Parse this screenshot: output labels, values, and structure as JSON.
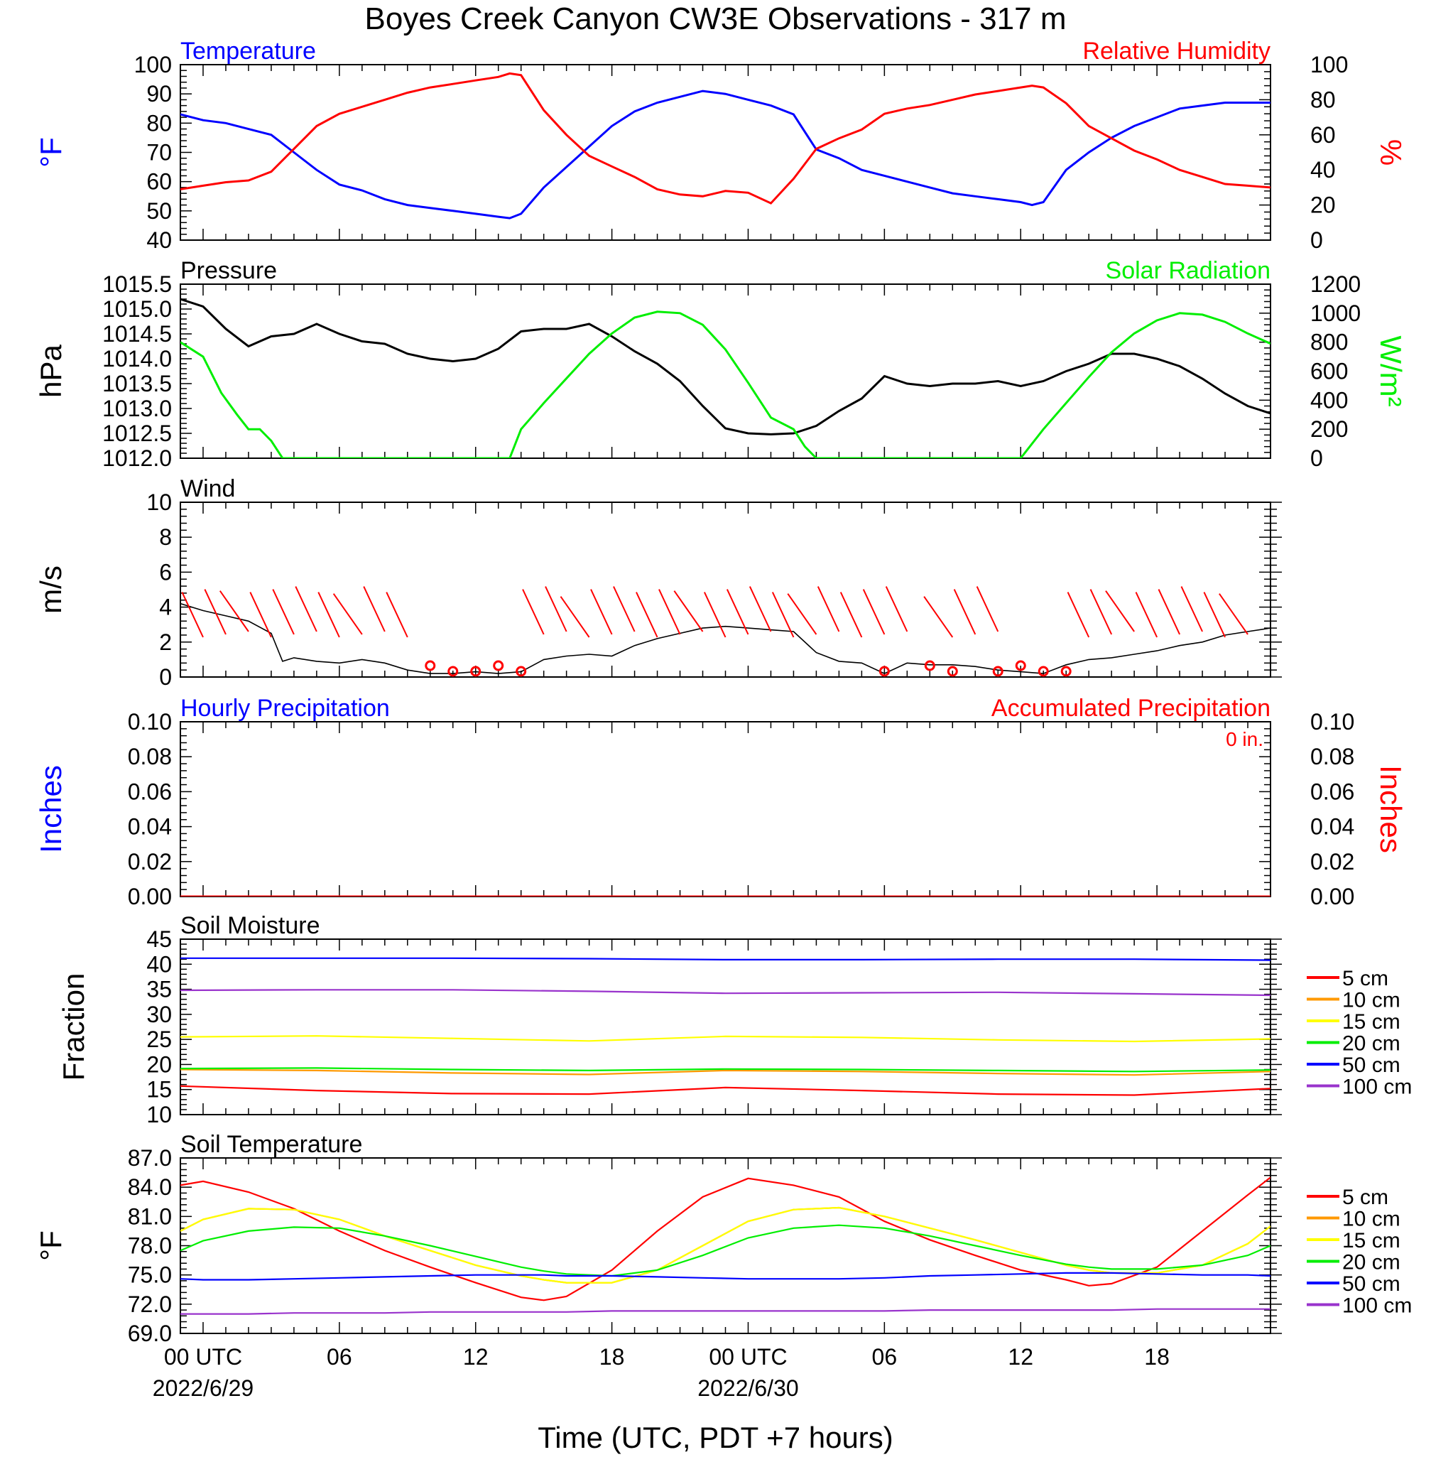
{
  "title": "Boyes Creek Canyon CW3E Observations - 317 m",
  "x_axis": {
    "title": "Time (UTC, PDT +7 hours)",
    "tick_hours": [
      0,
      6,
      12,
      18,
      24,
      30,
      36,
      42
    ],
    "tick_labels": [
      "00 UTC",
      "06",
      "12",
      "18",
      "00 UTC",
      "06",
      "12",
      "18"
    ],
    "date_labels": [
      {
        "hour": 0,
        "text": "2022/6/29"
      },
      {
        "hour": 24,
        "text": "2022/6/30"
      }
    ],
    "range_hours": [
      -1,
      47
    ]
  },
  "chart_data": [
    {
      "type": "line",
      "panel": "temperature-humidity",
      "left_title": "Temperature",
      "right_title": "Relative Humidity",
      "ylabel_left": "°F",
      "ylabel_right": "%",
      "ylim_left": [
        40,
        100
      ],
      "ylim_right": [
        0,
        100
      ],
      "yticks_left": [
        "40",
        "50",
        "60",
        "70",
        "80",
        "90",
        "100"
      ],
      "yticks_right": [
        "0",
        "20",
        "40",
        "60",
        "80",
        "100"
      ],
      "x": [
        -1,
        0,
        1,
        2,
        3,
        4,
        5,
        6,
        7,
        8,
        9,
        10,
        11,
        12,
        13,
        13.5,
        14,
        15,
        16,
        17,
        18,
        19,
        20,
        21,
        22,
        23,
        24,
        25,
        26,
        27,
        28,
        29,
        30,
        31,
        32,
        33,
        34,
        35,
        36,
        36.5,
        37,
        38,
        39,
        40,
        41,
        42,
        43,
        44,
        45,
        46,
        47
      ],
      "series": [
        {
          "name": "Temperature",
          "axis": "left",
          "color": "#0000ff",
          "values": [
            83,
            81,
            80,
            78,
            76,
            70,
            64,
            59,
            57,
            54,
            52,
            51,
            50,
            49,
            48,
            47.5,
            49,
            58,
            65,
            72,
            79,
            84,
            87,
            89,
            91,
            90,
            88,
            86,
            83,
            71,
            68,
            64,
            62,
            60,
            58,
            56,
            55,
            54,
            53,
            52,
            53,
            64,
            70,
            75,
            79,
            82,
            85,
            86,
            87,
            87,
            87
          ]
        },
        {
          "name": "Relative Humidity",
          "axis": "right",
          "color": "#ff0000",
          "values": [
            29,
            31,
            33,
            34,
            39,
            52,
            65,
            72,
            76,
            80,
            84,
            87,
            89,
            91,
            93,
            95,
            94,
            74,
            60,
            48,
            42,
            36,
            29,
            26,
            25,
            28,
            27,
            21,
            35,
            52,
            58,
            63,
            72,
            75,
            77,
            80,
            83,
            85,
            87,
            88,
            87,
            78,
            65,
            58,
            51,
            46,
            40,
            36,
            32,
            31,
            30
          ]
        }
      ]
    },
    {
      "type": "line",
      "panel": "pressure-solar",
      "left_title": "Pressure",
      "right_title": "Solar Radiation",
      "ylabel_left": "hPa",
      "ylabel_right": "W/m²",
      "ylim_left": [
        1012.0,
        1015.5
      ],
      "ylim_right": [
        0,
        1200
      ],
      "yticks_left": [
        "1012.0",
        "1012.5",
        "1013.0",
        "1013.5",
        "1014.0",
        "1014.5",
        "1015.0",
        "1015.5"
      ],
      "yticks_right": [
        "0",
        "200",
        "400",
        "600",
        "800",
        "1000",
        "1200"
      ],
      "series": [
        {
          "name": "Pressure",
          "axis": "left",
          "color": "#000000",
          "x": [
            -1,
            0,
            1,
            2,
            3,
            4,
            5,
            6,
            7,
            8,
            9,
            10,
            11,
            12,
            13,
            14,
            15,
            16,
            17,
            18,
            19,
            20,
            21,
            22,
            23,
            24,
            25,
            26,
            27,
            28,
            29,
            30,
            31,
            32,
            33,
            34,
            35,
            36,
            37,
            38,
            39,
            40,
            41,
            42,
            43,
            44,
            45,
            46,
            47
          ],
          "values": [
            1015.2,
            1015.05,
            1014.6,
            1014.25,
            1014.45,
            1014.5,
            1014.7,
            1014.5,
            1014.35,
            1014.3,
            1014.1,
            1014.0,
            1013.95,
            1014.0,
            1014.2,
            1014.55,
            1014.6,
            1014.6,
            1014.7,
            1014.45,
            1014.15,
            1013.9,
            1013.55,
            1013.05,
            1012.6,
            1012.5,
            1012.48,
            1012.5,
            1012.65,
            1012.95,
            1013.2,
            1013.65,
            1013.5,
            1013.45,
            1013.5,
            1013.5,
            1013.55,
            1013.45,
            1013.55,
            1013.75,
            1013.9,
            1014.1,
            1014.1,
            1014.0,
            1013.85,
            1013.6,
            1013.3,
            1013.05,
            1012.9
          ]
        },
        {
          "name": "Solar Radiation",
          "axis": "right",
          "color": "#00ee00",
          "x": [
            -1,
            0,
            0.8,
            1.5,
            2,
            2.5,
            3,
            3.5,
            13,
            13.5,
            14,
            15,
            16,
            17,
            18,
            19,
            20,
            21,
            22,
            23,
            24,
            25,
            26,
            26.5,
            27,
            27.5,
            36,
            37,
            38,
            39,
            40,
            41,
            42,
            43,
            44,
            45,
            46,
            47
          ],
          "values": [
            800,
            700,
            450,
            300,
            200,
            200,
            120,
            0,
            0,
            0,
            200,
            380,
            550,
            720,
            860,
            970,
            1010,
            1000,
            920,
            750,
            520,
            280,
            200,
            80,
            0,
            0,
            0,
            200,
            380,
            560,
            730,
            860,
            950,
            1000,
            990,
            940,
            860,
            790
          ]
        }
      ]
    },
    {
      "type": "line",
      "panel": "wind",
      "left_title": "Wind",
      "ylabel_left": "m/s",
      "ylim_left": [
        0,
        10
      ],
      "yticks_left": [
        "0",
        "2",
        "4",
        "6",
        "8",
        "10"
      ],
      "x": [
        -1,
        0,
        1,
        2,
        3,
        3.5,
        4,
        5,
        6,
        7,
        8,
        9,
        10,
        11,
        12,
        13,
        14,
        15,
        16,
        17,
        18,
        19,
        20,
        21,
        22,
        23,
        24,
        25,
        26,
        27,
        28,
        29,
        30,
        31,
        32,
        33,
        34,
        35,
        36,
        37,
        38,
        39,
        40,
        41,
        42,
        43,
        44,
        45,
        46,
        47
      ],
      "series": [
        {
          "name": "Wind Speed",
          "axis": "left",
          "color": "#000000",
          "values": [
            4.2,
            3.8,
            3.5,
            3.2,
            2.5,
            0.9,
            1.1,
            0.9,
            0.8,
            1.0,
            0.8,
            0.4,
            0.2,
            0.2,
            0.3,
            0.2,
            0.3,
            1.0,
            1.2,
            1.3,
            1.2,
            1.8,
            2.2,
            2.5,
            2.8,
            2.9,
            2.8,
            2.7,
            2.6,
            1.4,
            0.9,
            0.8,
            0.2,
            0.8,
            0.7,
            0.7,
            0.6,
            0.4,
            0.3,
            0.2,
            0.7,
            1.0,
            1.1,
            1.3,
            1.5,
            1.8,
            2.0,
            2.4,
            2.6,
            2.8
          ]
        }
      ],
      "barb_hours": [
        0,
        1,
        2,
        3,
        4,
        5,
        6,
        7,
        8,
        9,
        15,
        16,
        17,
        18,
        19,
        20,
        21,
        22,
        23,
        24,
        25,
        26,
        27,
        28,
        29,
        30,
        31,
        33,
        34,
        35,
        39,
        40,
        41,
        42,
        43,
        44,
        45,
        46
      ],
      "calm_hours": [
        10,
        11,
        12,
        13,
        14,
        30,
        32,
        33,
        35,
        36,
        37,
        38
      ]
    },
    {
      "type": "line",
      "panel": "precipitation",
      "left_title": "Hourly Precipitation",
      "right_title": "Accumulated Precipitation",
      "annotation": "0 in.",
      "ylabel_left": "Inches",
      "ylabel_right": "Inches",
      "ylim_left": [
        0,
        0.1
      ],
      "ylim_right": [
        0,
        0.1
      ],
      "yticks_left": [
        "0.00",
        "0.02",
        "0.04",
        "0.06",
        "0.08",
        "0.10"
      ],
      "yticks_right": [
        "0.00",
        "0.02",
        "0.04",
        "0.06",
        "0.08",
        "0.10"
      ],
      "x": [
        -1,
        47
      ],
      "series": [
        {
          "name": "Hourly Precipitation",
          "axis": "left",
          "color": "#0000ff",
          "values": [
            0,
            0
          ]
        },
        {
          "name": "Accumulated Precipitation",
          "axis": "right",
          "color": "#ff0000",
          "values": [
            0,
            0
          ]
        }
      ]
    },
    {
      "type": "line",
      "panel": "soil-moisture",
      "left_title": "Soil Moisture",
      "ylabel_left": "Fraction",
      "ylim_left": [
        10,
        45
      ],
      "yticks_left": [
        "10",
        "15",
        "20",
        "25",
        "30",
        "35",
        "40",
        "45"
      ],
      "x": [
        -1,
        5,
        11,
        17,
        23,
        29,
        35,
        41,
        47
      ],
      "series": [
        {
          "name": "5 cm",
          "color": "#ff0000",
          "values": [
            15.7,
            14.8,
            14.2,
            14.1,
            15.4,
            14.8,
            14.1,
            13.9,
            15.2
          ]
        },
        {
          "name": "10 cm",
          "color": "#ff9900",
          "values": [
            19.0,
            18.8,
            18.3,
            18.0,
            18.8,
            18.6,
            18.2,
            17.9,
            18.6
          ]
        },
        {
          "name": "15 cm",
          "color": "#ffff00",
          "values": [
            25.5,
            25.7,
            25.2,
            24.7,
            25.6,
            25.4,
            24.9,
            24.6,
            25.1
          ]
        },
        {
          "name": "20 cm",
          "color": "#00ee00",
          "values": [
            19.2,
            19.3,
            19.0,
            18.8,
            19.1,
            19.0,
            18.8,
            18.6,
            18.9
          ]
        },
        {
          "name": "50 cm",
          "color": "#0000ff",
          "values": [
            41.2,
            41.2,
            41.2,
            41.1,
            40.9,
            40.9,
            41.0,
            41.0,
            40.8
          ]
        },
        {
          "name": "100 cm",
          "color": "#9933cc",
          "values": [
            34.8,
            34.9,
            34.9,
            34.6,
            34.2,
            34.3,
            34.4,
            34.1,
            33.8
          ]
        }
      ]
    },
    {
      "type": "line",
      "panel": "soil-temperature",
      "left_title": "Soil Temperature",
      "ylabel_left": "°F",
      "ylim_left": [
        69,
        87
      ],
      "yticks_left": [
        "69.0",
        "72.0",
        "75.0",
        "78.0",
        "81.0",
        "84.0",
        "87.0"
      ],
      "x": [
        -1,
        0,
        2,
        4,
        6,
        8,
        10,
        12,
        14,
        15,
        16,
        18,
        20,
        22,
        24,
        26,
        28,
        30,
        32,
        34,
        36,
        38,
        39,
        40,
        42,
        44,
        46,
        47
      ],
      "series": [
        {
          "name": "5 cm",
          "color": "#ff0000",
          "values": [
            84.2,
            84.6,
            83.5,
            81.8,
            79.5,
            77.5,
            75.8,
            74.2,
            72.7,
            72.4,
            72.8,
            75.5,
            79.5,
            83.0,
            84.9,
            84.2,
            83.0,
            80.5,
            78.6,
            77.0,
            75.5,
            74.5,
            73.9,
            74.1,
            75.8,
            79.5,
            83.2,
            85.0
          ]
        },
        {
          "name": "10 cm",
          "color": "#ff9900",
          "values": [
            79.5,
            80.7,
            81.8,
            81.7,
            80.7,
            79.0,
            77.5,
            76.0,
            74.9,
            74.5,
            74.2,
            74.2,
            75.5,
            78.0,
            80.5,
            81.7,
            81.9,
            81.0,
            79.8,
            78.6,
            77.3,
            76.0,
            75.5,
            75.2,
            75.2,
            76.0,
            78.2,
            80.0
          ]
        },
        {
          "name": "15 cm",
          "color": "#ffff00",
          "values": [
            79.5,
            80.7,
            81.8,
            81.7,
            80.7,
            79.0,
            77.5,
            76.0,
            74.9,
            74.5,
            74.2,
            74.2,
            75.5,
            78.0,
            80.5,
            81.7,
            81.9,
            81.0,
            79.8,
            78.6,
            77.3,
            76.0,
            75.5,
            75.2,
            75.2,
            76.0,
            78.2,
            80.0
          ]
        },
        {
          "name": "20 cm",
          "color": "#00ee00",
          "values": [
            77.5,
            78.5,
            79.5,
            79.9,
            79.8,
            79.0,
            78.0,
            76.9,
            75.8,
            75.4,
            75.1,
            74.9,
            75.5,
            77.0,
            78.8,
            79.8,
            80.1,
            79.8,
            79.0,
            78.0,
            77.0,
            76.1,
            75.8,
            75.6,
            75.6,
            76.0,
            77.0,
            78.0
          ]
        },
        {
          "name": "50 cm",
          "color": "#0000ff",
          "values": [
            74.6,
            74.5,
            74.5,
            74.6,
            74.7,
            74.8,
            74.9,
            75.0,
            75.0,
            75.0,
            74.9,
            74.9,
            74.8,
            74.7,
            74.6,
            74.6,
            74.6,
            74.7,
            74.9,
            75.0,
            75.1,
            75.2,
            75.2,
            75.2,
            75.1,
            75.0,
            75.0,
            74.9
          ]
        },
        {
          "name": "100 cm",
          "color": "#9933cc",
          "values": [
            71.0,
            71.0,
            71.0,
            71.1,
            71.1,
            71.1,
            71.2,
            71.2,
            71.2,
            71.2,
            71.2,
            71.3,
            71.3,
            71.3,
            71.3,
            71.3,
            71.3,
            71.3,
            71.4,
            71.4,
            71.4,
            71.4,
            71.4,
            71.4,
            71.5,
            71.5,
            71.5,
            71.5
          ]
        }
      ]
    }
  ]
}
